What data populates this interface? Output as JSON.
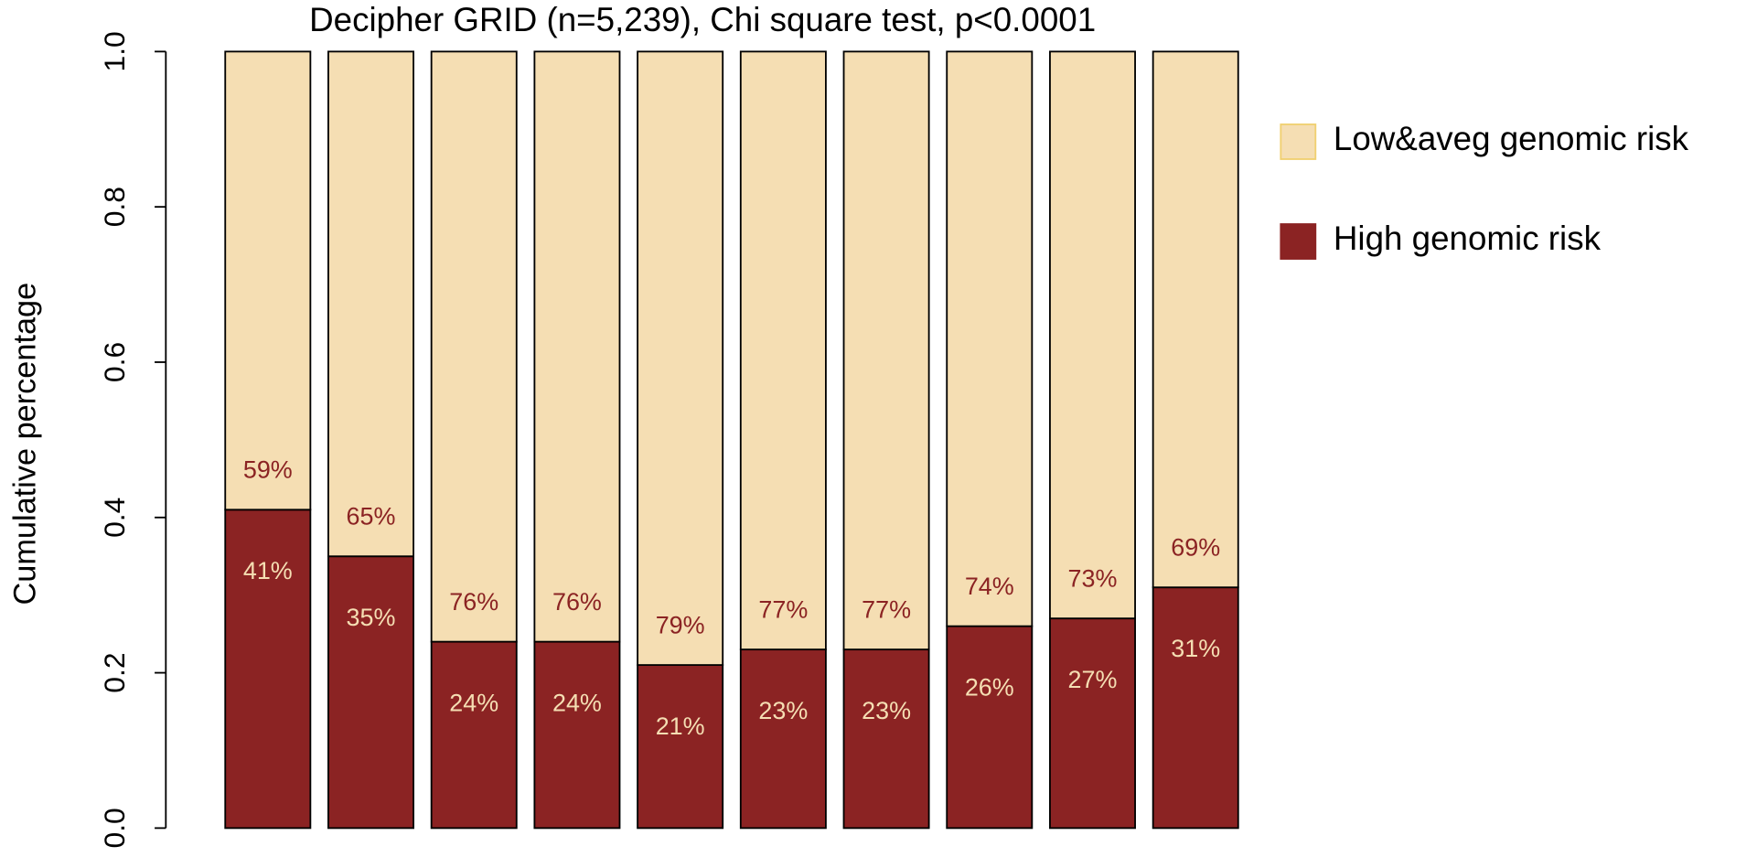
{
  "chart_data": {
    "type": "stacked_bar",
    "title": "Decipher GRID (n=5,239), Chi square test, p<0.0001",
    "y_label": "Cumulative percentage",
    "categories": [
      null,
      null,
      null,
      null,
      null,
      null,
      null,
      null,
      null,
      null
    ],
    "series": [
      {
        "name": "High genomic risk",
        "color": "#8b2323",
        "label_color": "#f5deb3",
        "values": [
          0.41,
          0.35,
          0.24,
          0.24,
          0.21,
          0.23,
          0.23,
          0.26,
          0.27,
          0.31
        ],
        "value_labels": [
          "41%",
          "35%",
          "24%",
          "24%",
          "21%",
          "23%",
          "23%",
          "26%",
          "27%",
          "31%"
        ]
      },
      {
        "name": "Low&aveg genomic risk",
        "color": "#f5deb3",
        "label_color": "#8b2323",
        "values": [
          0.59,
          0.65,
          0.76,
          0.76,
          0.79,
          0.77,
          0.77,
          0.74,
          0.73,
          0.69
        ],
        "value_labels": [
          "59%",
          "65%",
          "76%",
          "76%",
          "79%",
          "77%",
          "77%",
          "74%",
          "73%",
          "69%"
        ]
      }
    ],
    "ylim": [
      0,
      1
    ],
    "yticks": [
      {
        "value": 0,
        "label": "0.0"
      },
      0.2,
      0.4,
      0.6,
      0.8,
      {
        "value": 1,
        "label": "1.0"
      }
    ],
    "legend": "right"
  }
}
